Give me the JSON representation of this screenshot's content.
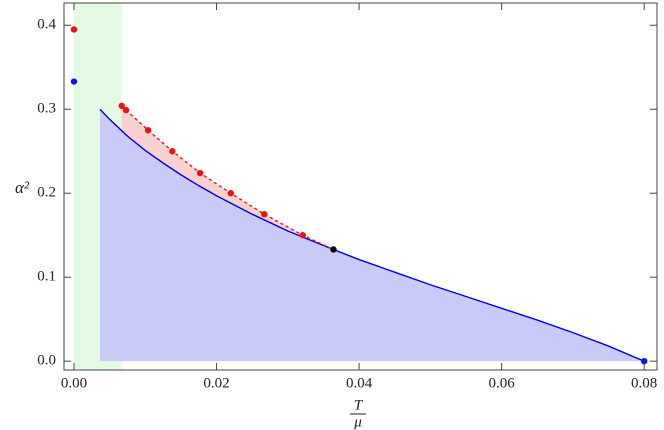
{
  "chart_data": {
    "type": "line",
    "x_label": {
      "numerator": "T",
      "denominator": "μ"
    },
    "y_label": "α²",
    "xlim": [
      -0.0014,
      0.0818
    ],
    "ylim": [
      -0.0105,
      0.4265
    ],
    "xticks": [
      {
        "value": 0,
        "label": "0.00"
      },
      {
        "value": 0.02,
        "label": "0.02"
      },
      {
        "value": 0.04,
        "label": "0.04"
      },
      {
        "value": 0.06,
        "label": "0.06"
      },
      {
        "value": 0.08,
        "label": "0.08"
      }
    ],
    "yticks": [
      {
        "value": 0,
        "label": "0.0"
      },
      0.1,
      0.2,
      0.3,
      0.4
    ],
    "regions": [
      {
        "x": [
          0,
          0.0067
        ],
        "color": "#e2fbe2"
      }
    ],
    "series": [
      {
        "color": "#0000dd",
        "fill": "#cacaf8",
        "dashed": false,
        "markers": false,
        "x": [
          0.00365,
          0.005,
          0.0075,
          0.01,
          0.0125,
          0.015,
          0.0175,
          0.02,
          0.025,
          0.03,
          0.0364,
          0.04,
          0.045,
          0.05,
          0.055,
          0.06,
          0.065,
          0.07,
          0.075,
          0.08
        ],
        "values": [
          0.3,
          0.288,
          0.268,
          0.251,
          0.236,
          0.222,
          0.209,
          0.197,
          0.175,
          0.155,
          0.133,
          0.121,
          0.106,
          0.091,
          0.077,
          0.063,
          0.049,
          0.034,
          0.018,
          0
        ]
      },
      {
        "color": "#ee1111",
        "fill": "#fbd0d0",
        "dashed": true,
        "markers": true,
        "x": [
          0.0067,
          0.0073,
          0.0104,
          0.0138,
          0.0177,
          0.022,
          0.0267,
          0.0321
        ],
        "values": [
          0.304,
          0.299,
          0.275,
          0.25,
          0.224,
          0.2,
          0.175,
          0.15
        ]
      }
    ],
    "points": [
      {
        "x": 0,
        "y": 0.395,
        "color": "#ee1111"
      },
      {
        "x": 0,
        "y": 0.333,
        "color": "#1111ee"
      },
      {
        "x": 0.0364,
        "y": 0.133,
        "color": "#000000"
      },
      {
        "x": 0.08,
        "y": 0,
        "color": "#1111ee"
      }
    ]
  }
}
